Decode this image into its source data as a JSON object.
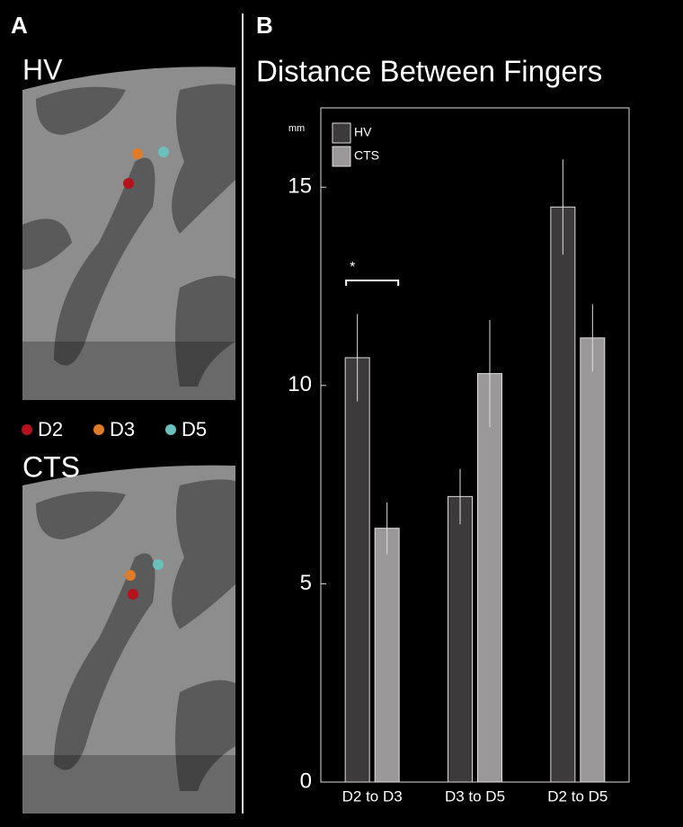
{
  "panel_a": {
    "label": "A",
    "top_title": "HV",
    "bottom_title": "CTS",
    "legend": [
      {
        "name": "D2",
        "color": "#b5121b"
      },
      {
        "name": "D3",
        "color": "#e07b2a"
      },
      {
        "name": "D5",
        "color": "#6cc0bc"
      }
    ]
  },
  "chart_data": {
    "type": "bar",
    "panel_label": "B",
    "title": "Distance Between Fingers",
    "y_unit": "mm",
    "categories": [
      "D2 to D3",
      "D3 to D5",
      "D2 to D5"
    ],
    "series": [
      {
        "name": "HV",
        "color": "#3c3a3a",
        "values": [
          10.7,
          7.2,
          14.5
        ],
        "errors": [
          1.1,
          0.7,
          1.2
        ]
      },
      {
        "name": "CTS",
        "color": "#9a9898",
        "values": [
          6.4,
          10.3,
          11.2
        ],
        "errors": [
          0.65,
          1.35,
          0.85
        ]
      }
    ],
    "ylim": [
      0,
      17
    ],
    "yticks": [
      0,
      5,
      10,
      15
    ],
    "annotation": "*",
    "legend": "top-left"
  }
}
